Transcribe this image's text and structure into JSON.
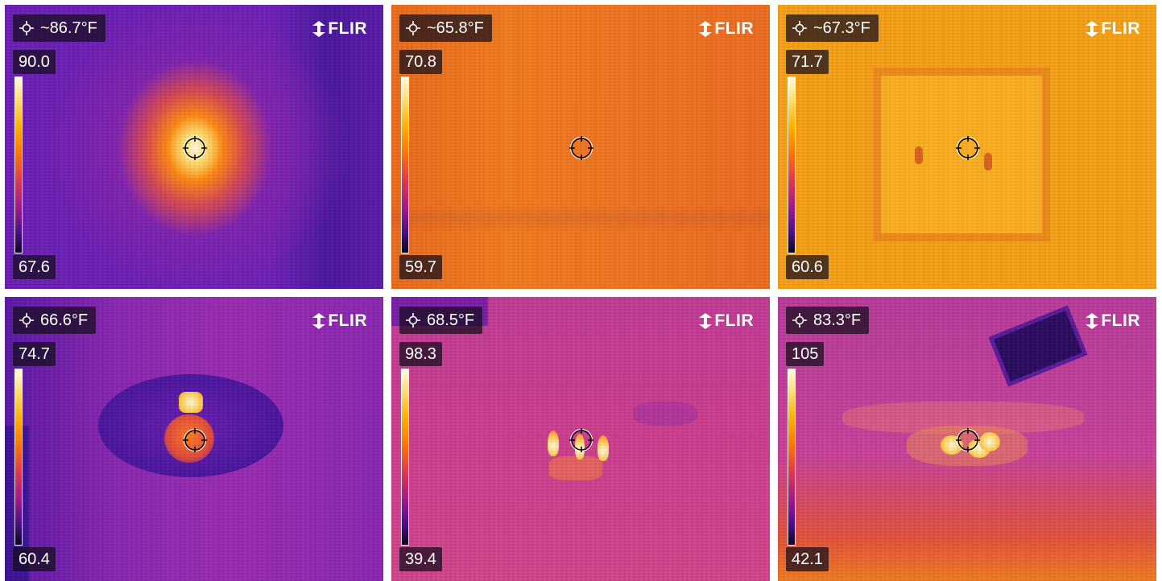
{
  "brand": "FLIR",
  "panels": [
    {
      "spot": "~86.7°F",
      "max": "90.0",
      "min": "67.6"
    },
    {
      "spot": "~65.8°F",
      "max": "70.8",
      "min": "59.7"
    },
    {
      "spot": "~67.3°F",
      "max": "71.7",
      "min": "60.6"
    },
    {
      "spot": "66.6°F",
      "max": "74.7",
      "min": "60.4"
    },
    {
      "spot": "68.5°F",
      "max": "98.3",
      "min": "39.4"
    },
    {
      "spot": "83.3°F",
      "max": "105",
      "min": "42.1"
    }
  ],
  "palette": [
    "#0a0620",
    "#4b0f8a",
    "#a01a8a",
    "#e23a4a",
    "#ff7a00",
    "#ffb000",
    "#ffe17a",
    "#fffbe0"
  ],
  "icons": {
    "spot": "crosshair-icon",
    "logo": "flir-logo-icon",
    "reticle": "spot-meter-reticle-icon"
  }
}
